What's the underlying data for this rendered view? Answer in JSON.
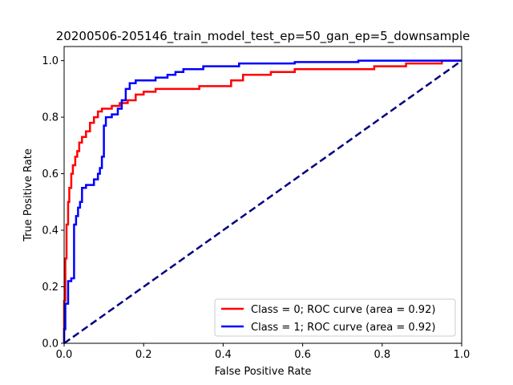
{
  "chart_data": {
    "type": "line",
    "title": "20200506-205146_train_model_test_ep=50_gan_ep=5_downsample",
    "xlabel": "False Positive Rate",
    "ylabel": "True Positive Rate",
    "xlim": [
      0,
      1
    ],
    "ylim": [
      0,
      1.05
    ],
    "xticks": [
      "0.0",
      "0.2",
      "0.4",
      "0.6",
      "0.8",
      "1.0"
    ],
    "yticks": [
      "0.0",
      "0.2",
      "0.4",
      "0.6",
      "0.8",
      "1.0"
    ],
    "grid": false,
    "legend_position": "lower-right",
    "series": [
      {
        "name": "Class = 0; ROC curve (area =  0.92)",
        "color": "#ff0000",
        "style": "solid",
        "x": [
          0.0,
          0.0,
          0.003,
          0.003,
          0.006,
          0.006,
          0.01,
          0.01,
          0.013,
          0.013,
          0.018,
          0.018,
          0.022,
          0.022,
          0.028,
          0.028,
          0.033,
          0.033,
          0.038,
          0.038,
          0.045,
          0.045,
          0.055,
          0.055,
          0.065,
          0.065,
          0.075,
          0.075,
          0.085,
          0.085,
          0.095,
          0.095,
          0.12,
          0.12,
          0.14,
          0.14,
          0.16,
          0.16,
          0.18,
          0.18,
          0.2,
          0.2,
          0.23,
          0.23,
          0.34,
          0.34,
          0.42,
          0.42,
          0.45,
          0.45,
          0.52,
          0.52,
          0.58,
          0.58,
          0.78,
          0.78,
          0.86,
          0.86,
          0.95,
          0.95,
          1.0
        ],
        "y": [
          0.0,
          0.15,
          0.15,
          0.3,
          0.3,
          0.42,
          0.42,
          0.5,
          0.5,
          0.55,
          0.55,
          0.6,
          0.6,
          0.63,
          0.63,
          0.66,
          0.66,
          0.68,
          0.68,
          0.71,
          0.71,
          0.73,
          0.73,
          0.75,
          0.75,
          0.78,
          0.78,
          0.8,
          0.8,
          0.82,
          0.82,
          0.83,
          0.83,
          0.84,
          0.84,
          0.85,
          0.85,
          0.86,
          0.86,
          0.88,
          0.88,
          0.89,
          0.89,
          0.9,
          0.9,
          0.91,
          0.91,
          0.93,
          0.93,
          0.95,
          0.95,
          0.96,
          0.96,
          0.97,
          0.97,
          0.98,
          0.98,
          0.99,
          0.99,
          1.0,
          1.0
        ]
      },
      {
        "name": "Class = 1; ROC curve (area =  0.92)",
        "color": "#0000ff",
        "style": "solid",
        "x": [
          0.0,
          0.0,
          0.003,
          0.003,
          0.01,
          0.01,
          0.018,
          0.018,
          0.025,
          0.025,
          0.03,
          0.03,
          0.035,
          0.035,
          0.04,
          0.04,
          0.045,
          0.045,
          0.055,
          0.055,
          0.075,
          0.075,
          0.085,
          0.085,
          0.09,
          0.09,
          0.095,
          0.095,
          0.1,
          0.1,
          0.105,
          0.105,
          0.12,
          0.12,
          0.135,
          0.135,
          0.145,
          0.145,
          0.155,
          0.155,
          0.165,
          0.165,
          0.18,
          0.18,
          0.23,
          0.23,
          0.26,
          0.26,
          0.28,
          0.28,
          0.3,
          0.3,
          0.35,
          0.35,
          0.44,
          0.44,
          0.58,
          0.58,
          0.74,
          0.74,
          0.85,
          0.85,
          0.9,
          0.9,
          0.97,
          0.97,
          1.0
        ],
        "y": [
          0.0,
          0.05,
          0.05,
          0.14,
          0.14,
          0.22,
          0.22,
          0.23,
          0.23,
          0.42,
          0.42,
          0.45,
          0.45,
          0.48,
          0.48,
          0.5,
          0.5,
          0.55,
          0.55,
          0.56,
          0.56,
          0.58,
          0.58,
          0.6,
          0.6,
          0.62,
          0.62,
          0.66,
          0.66,
          0.77,
          0.77,
          0.8,
          0.8,
          0.81,
          0.81,
          0.83,
          0.83,
          0.86,
          0.86,
          0.9,
          0.9,
          0.92,
          0.92,
          0.93,
          0.93,
          0.94,
          0.94,
          0.95,
          0.95,
          0.96,
          0.96,
          0.97,
          0.97,
          0.98,
          0.98,
          0.99,
          0.99,
          0.995,
          0.995,
          1.0,
          1.0,
          1.0,
          1.0,
          1.0,
          1.0,
          1.0,
          1.0
        ]
      },
      {
        "color": "#000080",
        "style": "dashed",
        "x": [
          0,
          1
        ],
        "y": [
          0,
          1
        ]
      }
    ]
  }
}
